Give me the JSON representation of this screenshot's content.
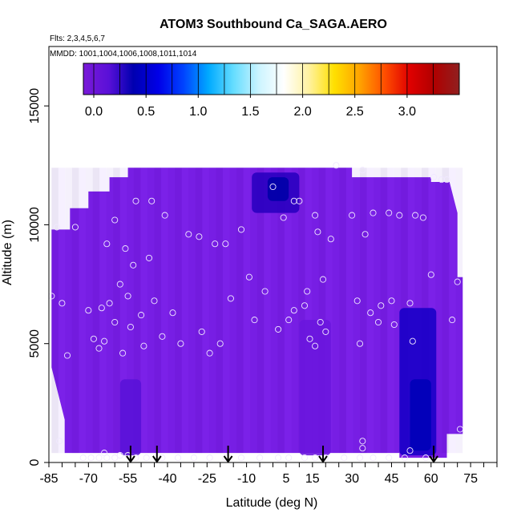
{
  "chart_data": {
    "type": "heatmap",
    "title": "ATOM3 Southbound Ca_SAGA.AERO",
    "flights_label": "Flts: 2,3,4,5,6,7",
    "mmdd_label": "MMDD: 1001,1004,1006,1008,1011,1014",
    "xlabel": "Latitude (deg N)",
    "ylabel": "Altitude (m)",
    "xlim": [
      -85,
      85
    ],
    "ylim": [
      0,
      17500
    ],
    "x_ticks": [
      -85,
      -70,
      -55,
      -40,
      -25,
      -10,
      5,
      15,
      30,
      45,
      60,
      75
    ],
    "y_ticks": [
      0,
      5000,
      10000,
      15000
    ],
    "colorbar": {
      "range": [
        -0.1,
        3.5
      ],
      "ticks": [
        "0.0",
        "0.5",
        "1.0",
        "1.5",
        "2.0",
        "2.5",
        "3.0"
      ],
      "tick_values": [
        0.0,
        0.5,
        1.0,
        1.5,
        2.0,
        2.5,
        3.0
      ],
      "colors": [
        "#7a1ad8",
        "#5a10d8",
        "#0000b0",
        "#0000e8",
        "#0044ff",
        "#00aaff",
        "#66ddff",
        "#ccf4ff",
        "#ffffff",
        "#fff2a0",
        "#ffe000",
        "#ffa500",
        "#ff5000",
        "#e00000",
        "#b00000",
        "#902020"
      ]
    },
    "field": {
      "base_value": 0.1,
      "base_color": "#7a1fe6",
      "low_regions": [
        {
          "lat": [
            48,
            62
          ],
          "alt": [
            300,
            6500
          ],
          "value": 0.45,
          "color": "#1a00c8"
        },
        {
          "lat": [
            52,
            60
          ],
          "alt": [
            500,
            3500
          ],
          "value": 0.55,
          "color": "#0000b8"
        },
        {
          "lat": [
            -8,
            10
          ],
          "alt": [
            10500,
            12200
          ],
          "value": 0.45,
          "color": "#2a00c0"
        },
        {
          "lat": [
            -2,
            6
          ],
          "alt": [
            11000,
            12000
          ],
          "value": 0.55,
          "color": "#0000a8"
        },
        {
          "lat": [
            -58,
            -50
          ],
          "alt": [
            300,
            3500
          ],
          "value": 0.25,
          "color": "#5a12d8"
        },
        {
          "lat": [
            10,
            22
          ],
          "alt": [
            300,
            6000
          ],
          "value": 0.2,
          "color": "#6a16de"
        }
      ]
    },
    "observations": [
      {
        "lat": -84,
        "alt": 7000
      },
      {
        "lat": -82,
        "alt": 9900
      },
      {
        "lat": -78,
        "alt": 4500
      },
      {
        "lat": -75,
        "alt": 9900
      },
      {
        "lat": -80,
        "alt": 6700
      },
      {
        "lat": -70,
        "alt": 6400
      },
      {
        "lat": -68,
        "alt": 5200
      },
      {
        "lat": -66,
        "alt": 4800
      },
      {
        "lat": -65,
        "alt": 6500
      },
      {
        "lat": -64,
        "alt": 5100
      },
      {
        "lat": -63,
        "alt": 9200
      },
      {
        "lat": -62,
        "alt": 6700
      },
      {
        "lat": -60,
        "alt": 5900
      },
      {
        "lat": -60,
        "alt": 10200
      },
      {
        "lat": -58,
        "alt": 7500
      },
      {
        "lat": -57,
        "alt": 4600
      },
      {
        "lat": -56,
        "alt": 9000
      },
      {
        "lat": -55,
        "alt": 7000
      },
      {
        "lat": -54,
        "alt": 5700
      },
      {
        "lat": -53,
        "alt": 8300
      },
      {
        "lat": -52,
        "alt": 11000
      },
      {
        "lat": -50,
        "alt": 6200
      },
      {
        "lat": -49,
        "alt": 4900
      },
      {
        "lat": -47,
        "alt": 8600
      },
      {
        "lat": -46,
        "alt": 11000
      },
      {
        "lat": -45,
        "alt": 6800
      },
      {
        "lat": -42,
        "alt": 5300
      },
      {
        "lat": -41,
        "alt": 10400
      },
      {
        "lat": -38,
        "alt": 6300
      },
      {
        "lat": -35,
        "alt": 5000
      },
      {
        "lat": -32,
        "alt": 9600
      },
      {
        "lat": -28,
        "alt": 9500
      },
      {
        "lat": -27,
        "alt": 5500
      },
      {
        "lat": -24,
        "alt": 4600
      },
      {
        "lat": -22,
        "alt": 9200
      },
      {
        "lat": -20,
        "alt": 5000
      },
      {
        "lat": -18,
        "alt": 9200
      },
      {
        "lat": -16,
        "alt": 6900
      },
      {
        "lat": -12,
        "alt": 9800
      },
      {
        "lat": -9,
        "alt": 7800
      },
      {
        "lat": -7,
        "alt": 6000
      },
      {
        "lat": -3,
        "alt": 7200
      },
      {
        "lat": 0,
        "alt": 11600
      },
      {
        "lat": 2,
        "alt": 5600
      },
      {
        "lat": 4,
        "alt": 10300
      },
      {
        "lat": 6,
        "alt": 6000
      },
      {
        "lat": 8,
        "alt": 6400
      },
      {
        "lat": 8,
        "alt": 11000
      },
      {
        "lat": 10,
        "alt": 11000
      },
      {
        "lat": 12,
        "alt": 6600
      },
      {
        "lat": 13,
        "alt": 7200
      },
      {
        "lat": 14,
        "alt": 5200
      },
      {
        "lat": 16,
        "alt": 4900
      },
      {
        "lat": 16,
        "alt": 10400
      },
      {
        "lat": 17,
        "alt": 9700
      },
      {
        "lat": 18,
        "alt": 5900
      },
      {
        "lat": 19,
        "alt": 7700
      },
      {
        "lat": 20,
        "alt": 5500
      },
      {
        "lat": 22,
        "alt": 9400
      },
      {
        "lat": 24,
        "alt": 12500
      },
      {
        "lat": 30,
        "alt": 10400
      },
      {
        "lat": 32,
        "alt": 6800
      },
      {
        "lat": 33,
        "alt": 5000
      },
      {
        "lat": 34,
        "alt": 12300
      },
      {
        "lat": 35,
        "alt": 9600
      },
      {
        "lat": 37,
        "alt": 6300
      },
      {
        "lat": 38,
        "alt": 10500
      },
      {
        "lat": 40,
        "alt": 5900
      },
      {
        "lat": 41,
        "alt": 6600
      },
      {
        "lat": 44,
        "alt": 10500
      },
      {
        "lat": 45,
        "alt": 6800
      },
      {
        "lat": 46,
        "alt": 5800
      },
      {
        "lat": 48,
        "alt": 10400
      },
      {
        "lat": 52,
        "alt": 6700
      },
      {
        "lat": 53,
        "alt": 5100
      },
      {
        "lat": 54,
        "alt": 10400
      },
      {
        "lat": 57,
        "alt": 10300
      },
      {
        "lat": 60,
        "alt": 7900
      },
      {
        "lat": 61,
        "alt": 12000
      },
      {
        "lat": 64,
        "alt": 11900
      },
      {
        "lat": 66,
        "alt": 11900
      },
      {
        "lat": 70,
        "alt": 7600
      },
      {
        "lat": 71,
        "alt": 1400
      },
      {
        "lat": 68,
        "alt": 6000
      },
      {
        "lat": 34,
        "alt": 900
      },
      {
        "lat": 34,
        "alt": 600
      },
      {
        "lat": 52,
        "alt": 500
      },
      {
        "lat": -81,
        "alt": 900
      },
      {
        "lat": -72,
        "alt": 200
      },
      {
        "lat": -69,
        "alt": 200
      },
      {
        "lat": -66,
        "alt": 200
      },
      {
        "lat": -64,
        "alt": 400
      },
      {
        "lat": -63,
        "alt": 200
      },
      {
        "lat": -60,
        "alt": 200
      },
      {
        "lat": -58,
        "alt": 300
      },
      {
        "lat": -55,
        "alt": 300
      },
      {
        "lat": -52,
        "alt": 200
      },
      {
        "lat": -48,
        "alt": 200
      },
      {
        "lat": -42,
        "alt": 200
      },
      {
        "lat": -36,
        "alt": 200
      },
      {
        "lat": -30,
        "alt": 200
      },
      {
        "lat": -24,
        "alt": 200
      },
      {
        "lat": -18,
        "alt": 200
      },
      {
        "lat": -12,
        "alt": 200
      },
      {
        "lat": -5,
        "alt": 200
      },
      {
        "lat": 2,
        "alt": 200
      },
      {
        "lat": 6,
        "alt": 200
      },
      {
        "lat": 12,
        "alt": 200
      },
      {
        "lat": 16,
        "alt": 200
      },
      {
        "lat": 20,
        "alt": 200
      },
      {
        "lat": 27,
        "alt": 200
      },
      {
        "lat": 33,
        "alt": 200
      },
      {
        "lat": 38,
        "alt": 200
      },
      {
        "lat": 44,
        "alt": 200
      },
      {
        "lat": 50,
        "alt": 200
      },
      {
        "lat": 58,
        "alt": 200
      }
    ],
    "arrows_lat": [
      -54,
      -44,
      -17,
      19,
      61
    ]
  }
}
